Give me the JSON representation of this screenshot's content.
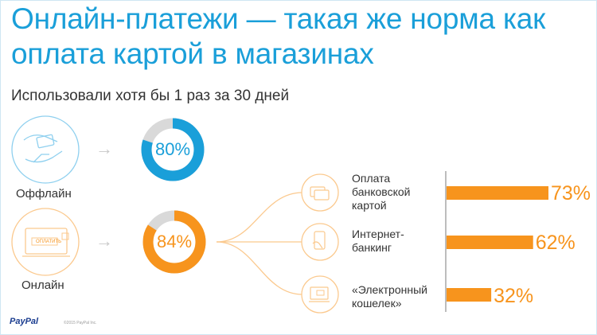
{
  "title": "Онлайн-платежи — такая же норма как оплата картой в магазинах",
  "subtitle": "Использовали хотя бы 1 раз за 30 дней",
  "offline_label": "Оффлайн",
  "online_label": "Онлайн",
  "button_text": "ОПЛАТИТЬ",
  "footer_logo": "PayPal",
  "footer_copy": "©2015 PayPal Inc.",
  "colors": {
    "blue": "#1a9fd9",
    "orange": "#f7941d",
    "grey": "#d9d9d9"
  },
  "chart_data": [
    {
      "type": "pie",
      "series": [
        {
          "name": "Оффлайн",
          "value": 80
        }
      ],
      "labels": [
        "80%"
      ]
    },
    {
      "type": "pie",
      "series": [
        {
          "name": "Онлайн",
          "value": 84
        }
      ],
      "labels": [
        "84%"
      ]
    },
    {
      "type": "bar",
      "orientation": "horizontal",
      "categories": [
        "Оплата банковской картой",
        "Интернет-банкинг",
        "«Электронный кошелек»"
      ],
      "values": [
        73,
        62,
        32
      ],
      "labels": [
        "73%",
        "62%",
        "32%"
      ]
    }
  ]
}
